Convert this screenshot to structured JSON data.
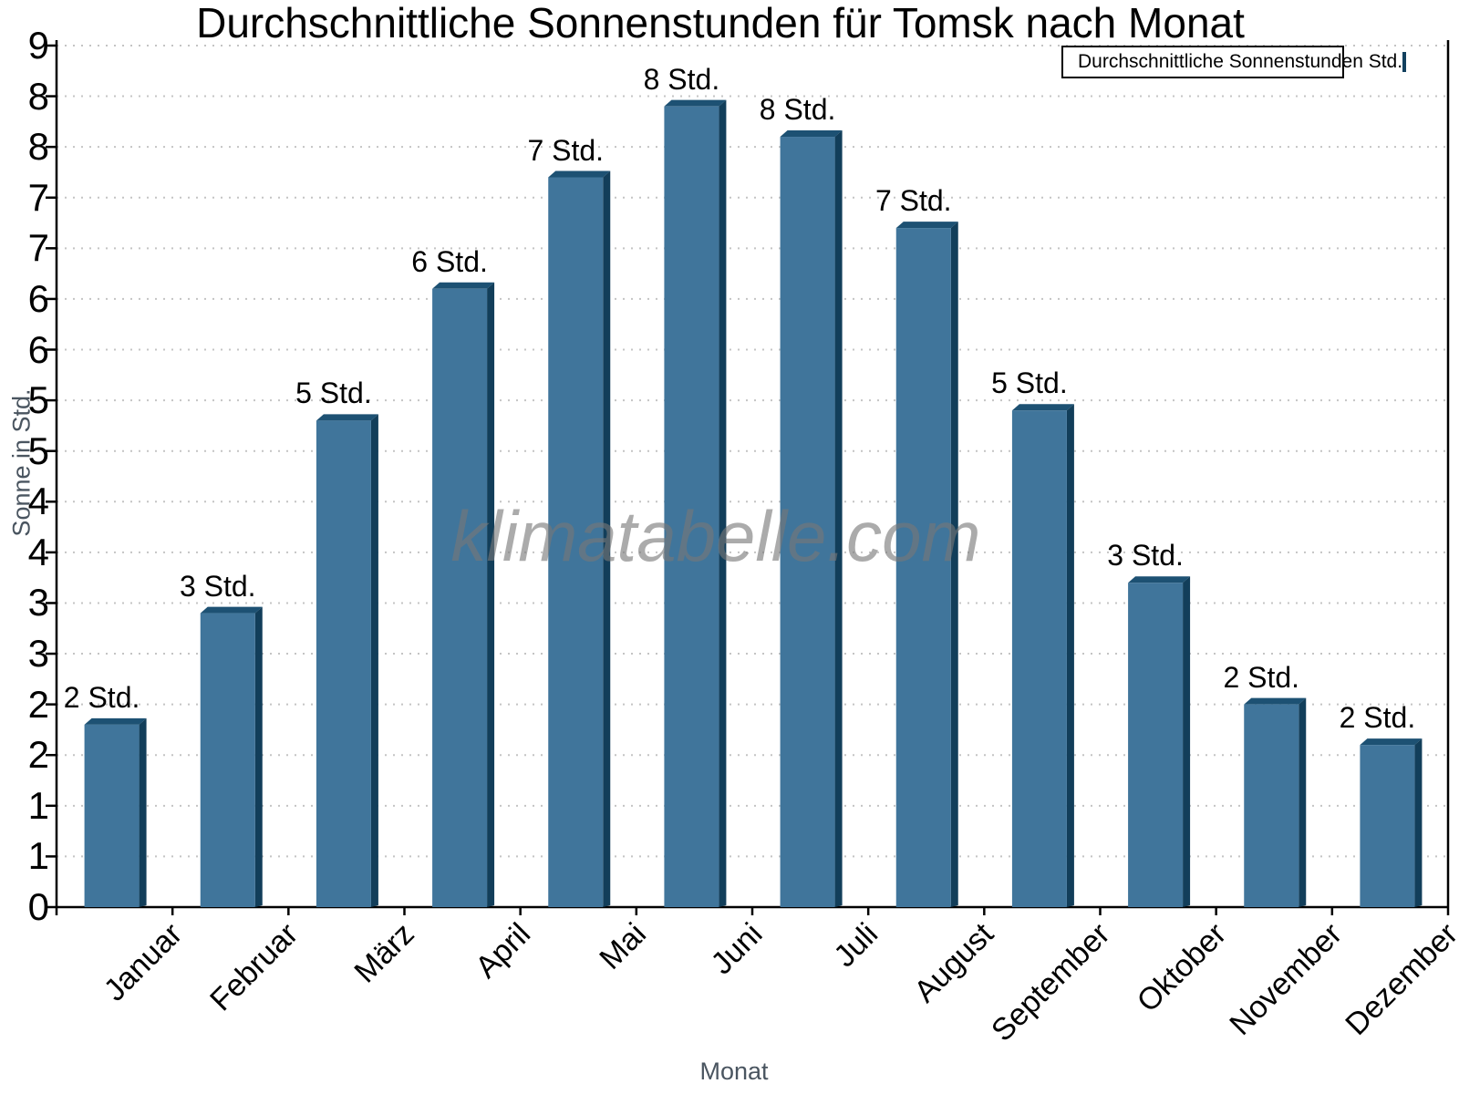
{
  "watermark": {
    "text": "klimatabelle.com",
    "color": "#787878"
  },
  "chart_data": {
    "type": "bar",
    "title": "Durchschnittliche Sonnenstunden für Tomsk nach Monat",
    "xlabel": "Monat",
    "ylabel": "Sonne in Std.",
    "legend": {
      "label": "Durchschnittliche Sonnenstunden Std.",
      "position": "top-right",
      "swatch_color": "#40759b",
      "swatch_border_color": "#12405e"
    },
    "categories": [
      "Januar",
      "Februar",
      "März",
      "April",
      "Mai",
      "Juni",
      "Juli",
      "August",
      "September",
      "Oktober",
      "November",
      "Dezember"
    ],
    "series": [
      {
        "name": "Durchschnittliche Sonnenstunden Std.",
        "values": [
          1.8,
          2.9,
          4.8,
          6.1,
          7.2,
          7.9,
          7.6,
          6.7,
          4.9,
          3.2,
          2.0,
          1.6
        ],
        "bar_labels": [
          "2 Std.",
          "3 Std.",
          "5 Std.",
          "6 Std.",
          "7 Std.",
          "8 Std.",
          "8 Std.",
          "7 Std.",
          "5 Std.",
          "3 Std.",
          "2 Std.",
          "2 Std."
        ]
      }
    ],
    "ylim": [
      0,
      8.5
    ],
    "ytick_step": 0.5,
    "ytick_labels_top_to_bottom": [
      "9",
      "8",
      "8",
      "7",
      "7",
      "6",
      "6",
      "5",
      "5",
      "4",
      "4",
      "3",
      "3",
      "2",
      "2",
      "1",
      "1",
      "0"
    ],
    "x_axis_label_rotation_deg": 45,
    "grid": "horizontal dotted",
    "gridline_color": "#c4c4c4",
    "axis_color": "#000000",
    "bar_face_color": "#40759b",
    "bar_top_color": "#1d5173",
    "bar_side_color": "#123e5a"
  }
}
